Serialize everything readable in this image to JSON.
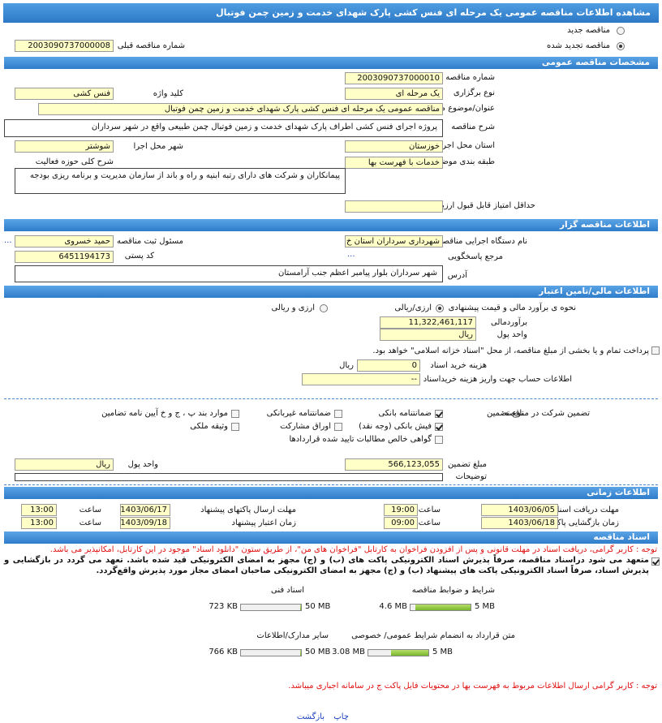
{
  "header": {
    "title": "مشاهده اطلاعات مناقصه عمومی یک مرحله ای فنس کشی پارک شهدای خدمت و زمین چمن فوتبال"
  },
  "status": {
    "new": {
      "label": "مناقصه جدید",
      "checked": false
    },
    "renewed": {
      "label": "مناقصه تجدید شده",
      "checked": true
    },
    "previous_number": {
      "label": "شماره مناقصه قبلی",
      "value": "2003090737000008"
    }
  },
  "general": {
    "heading": "مشخصات مناقصه عمومی",
    "number": {
      "label": "شماره مناقصه",
      "value": "2003090737000010"
    },
    "holding_type": {
      "label": "نوع برگزاری",
      "value": "یک مرحله ای"
    },
    "keyword": {
      "label": "کلید واژه",
      "value": "فنس کشی"
    },
    "title": {
      "label": "عنوان/موضوع مناقصه",
      "value": "مناقصه عمومی یک مرحله ای فنس کشی پارک شهدای خدمت و زمین چمن فوتبال"
    },
    "description": {
      "label": "شرح مناقصه",
      "value": "پروژه اجرای فنس کشی اطراف پارک شهدای خدمت و زمین فوتبال چمن طبیعی واقع در شهر سرداران"
    },
    "province": {
      "label": "استان محل اجرا",
      "value": "خوزستان"
    },
    "city": {
      "label": "شهر محل اجرا",
      "value": "شوشتر"
    },
    "category": {
      "label": "طبقه بندی موضوعی",
      "value": "خدمات با فهرست بها"
    },
    "activity_scope": {
      "label": "شرح کلی حوزه فعالیت",
      "value": "پیمانکاران و شرکت های دارای رتبه ابنیه و راه و باند از سازمان مدیریت و برنامه ریزی بودجه"
    },
    "min_score": {
      "label": "حداقل امتیاز قابل قبول ارزیابی فنی/ بازرگانی"
    }
  },
  "organizer": {
    "heading": "اطلاعات مناقصه گزار",
    "agency": {
      "label": "نام دستگاه اجرایی مناقصه گزار",
      "value": "شهرداری سرداران استان خ"
    },
    "registrar": {
      "label": "مسئول ثبت مناقصه",
      "value": "حمید خسروی",
      "more": "..."
    },
    "reference": {
      "label": "مرجع پاسخگویی",
      "value": "..."
    },
    "postal_code": {
      "label": "کد پستی",
      "value": "6451194173"
    },
    "address": {
      "label": "آدرس",
      "value": "شهر سرداران بلوار پیامبر اعظم جنب آرامستان"
    }
  },
  "finance": {
    "heading": "اطلاعات مالی/تامین اعتبار",
    "estimate_method": {
      "label": "نحوه ی برآورد مالی و قیمت پیشنهادی",
      "options": [
        {
          "label": "ارزی/ریالی",
          "checked": true
        },
        {
          "label": "ارزی و ریالی",
          "checked": false
        }
      ]
    },
    "estimate": {
      "label": "برآوردمالی",
      "value": "11,322,461,117"
    },
    "currency": {
      "label": "واحد پول",
      "value": "ریال"
    },
    "treasury": {
      "label": "پرداخت تمام و یا بخشی از مبلغ مناقصه، از محل \"اسناد خزانه اسلامی\" خواهد بود.",
      "checked": false
    },
    "document_fee": {
      "label": "هزینه خرید اسناد",
      "value": "0",
      "unit": "ریال"
    },
    "account_info": {
      "label": "اطلاعات حساب جهت واریز هزینه خریداسناد",
      "value": "--"
    },
    "guarantee": {
      "label": "تضمین شرکت در مناقصه:",
      "type_label": "نوع تضمین",
      "options": [
        {
          "label": "ضمانتنامه بانکی",
          "checked": true
        },
        {
          "label": "ضمانتنامه غیربانکی",
          "checked": false
        },
        {
          "label": "موارد بند پ ، ج و خ آیین نامه تضامین",
          "checked": false
        },
        {
          "label": "فیش بانکی (وجه نقد)",
          "checked": true
        },
        {
          "label": "اوراق مشارکت",
          "checked": false
        },
        {
          "label": "وثیقه ملکی",
          "checked": false
        },
        {
          "label": "گواهی خالص مطالبات تایید شده قراردادها",
          "checked": false
        }
      ]
    },
    "guarantee_amount": {
      "label": "مبلغ تضمین",
      "value": "566,123,055"
    },
    "guarantee_currency": {
      "label": "واحد پول",
      "value": "ریال"
    },
    "notes": {
      "label": "توضیحات"
    }
  },
  "timing": {
    "heading": "اطلاعات زمانی",
    "rows": [
      {
        "label": "مهلت دریافت اسناد",
        "date": "1403/06/05",
        "time_label": "ساعت",
        "time": "19:00"
      },
      {
        "label": "مهلت ارسال پاکتهای پیشنهاد",
        "date": "1403/06/17",
        "time_label": "ساعت",
        "time": "13:00"
      },
      {
        "label": "زمان بازگشایی پاکت ها",
        "date": "1403/06/18",
        "time_label": "ساعت",
        "time": "09:00"
      },
      {
        "label": "زمان اعتبار پیشنهاد",
        "date": "1403/09/18",
        "time_label": "ساعت",
        "time": "13:00"
      }
    ]
  },
  "documents": {
    "heading": "اسناد مناقصه",
    "notice": "توجه : کاربر گرامی، دریافت اسناد در مهلت قانونی و پس از افزودن فراخوان به کارتابل \"فراخوان های من\"، از طریق ستون \"دانلود اسناد\" موجود در این کارتابل، امکانپذیر می باشد.",
    "commitment": {
      "label": "متعهد می شود دراسناد مناقصه، صرفاً پذیرش اسناد الکترونیکی پاکت های (ب) و (ج) مجهز به امضای الکترونیکی قید شده باشد. تعهد می گردد در بازگشایی و پذیرش اسناد، صرفاً اسناد الکترونیکی پاکت های پیشنهاد (ب) و (ج) مجهز به امضای الکترونیکی صاحبان امضای مجاز مورد پذیرش واقع‌گردد.",
      "checked": true
    },
    "files": [
      {
        "name": "شرایط و ضوابط مناقصه",
        "used": {
          "value": 4.6,
          "label": "4.6 MB"
        },
        "limit": {
          "value": 5,
          "label": "5 MB"
        }
      },
      {
        "name": "اسناد فنی",
        "used": {
          "value": 0.723,
          "label": "723 KB"
        },
        "limit": {
          "value": 50,
          "label": "50 MB"
        }
      },
      {
        "name": "متن قرارداد به انضمام شرایط عمومی/ خصوصی",
        "used": {
          "value": 3.08,
          "label": "3.08 MB"
        },
        "limit": {
          "value": 5,
          "label": "5 MB"
        }
      },
      {
        "name": "سایر مدارک/اطلاعات",
        "used": {
          "value": 0.766,
          "label": "766 KB"
        },
        "limit": {
          "value": 50,
          "label": "50 MB"
        }
      }
    ],
    "footnote": "توجه : کاربر گرامی ارسال اطلاعات مربوط به فهرست بها در محتویات فایل پاکت ج در سامانه اجباری میباشد."
  },
  "actions": {
    "print": "چاپ",
    "back": "بازگشت"
  }
}
